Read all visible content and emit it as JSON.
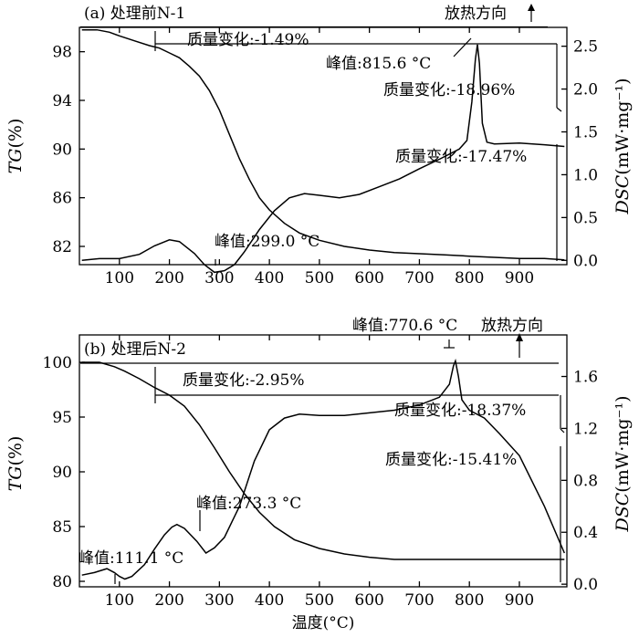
{
  "chart_data": [
    {
      "type": "line",
      "title": "(a) 处理前N-1",
      "xlim": [
        20,
        995
      ],
      "ylim_left": [
        80.5,
        100
      ],
      "ylim_right": [
        -0.05,
        2.72
      ],
      "x_ticks": [
        "100",
        "200",
        "300",
        "400",
        "500",
        "600",
        "700",
        "800",
        "900"
      ],
      "left_ticks": [
        "82",
        "86",
        "90",
        "94",
        "98"
      ],
      "right_ticks": [
        "0.0",
        "0.5",
        "1.0",
        "1.5",
        "2.0",
        "2.5"
      ],
      "left_label_it": "TG",
      "left_label_rest": "(%)",
      "right_label_it": "DSC",
      "right_label_rest": "(mW·mg⁻¹)",
      "exo_label": "放热方向",
      "series": [
        {
          "name": "TG",
          "axis": "left",
          "x": [
            25,
            55,
            80,
            100,
            130,
            160,
            180,
            200,
            220,
            240,
            260,
            280,
            300,
            320,
            340,
            360,
            380,
            400,
            430,
            460,
            500,
            550,
            600,
            650,
            700,
            750,
            800,
            850,
            900,
            950,
            990
          ],
          "y": [
            99.8,
            99.8,
            99.6,
            99.3,
            98.9,
            98.5,
            98.3,
            97.9,
            97.5,
            96.8,
            96.0,
            94.8,
            93.2,
            91.2,
            89.2,
            87.5,
            86.0,
            85.0,
            83.9,
            83.1,
            82.5,
            82.0,
            81.7,
            81.5,
            81.4,
            81.3,
            81.2,
            81.1,
            81.0,
            81.0,
            80.9
          ]
        },
        {
          "name": "DSC",
          "axis": "right",
          "x": [
            25,
            60,
            100,
            140,
            170,
            200,
            220,
            250,
            270,
            290,
            310,
            330,
            350,
            380,
            410,
            440,
            470,
            500,
            540,
            580,
            620,
            660,
            700,
            740,
            780,
            795,
            805,
            812,
            816,
            820,
            826,
            835,
            850,
            900,
            950,
            990
          ],
          "y": [
            0.0,
            0.02,
            0.02,
            0.07,
            0.17,
            0.24,
            0.22,
            0.08,
            -0.05,
            -0.14,
            -0.12,
            -0.05,
            0.1,
            0.36,
            0.58,
            0.73,
            0.78,
            0.76,
            0.73,
            0.77,
            0.86,
            0.95,
            1.07,
            1.18,
            1.3,
            1.4,
            1.85,
            2.35,
            2.52,
            2.3,
            1.6,
            1.38,
            1.36,
            1.37,
            1.35,
            1.33
          ]
        }
      ],
      "annotations": {
        "mass1": "质量变化:-1.49%",
        "peak_high": "峰值:815.6 °C",
        "mass2": "质量变化:-18.96%",
        "mass3": "质量变化:-17.47%",
        "peak_low": "峰值:299.0 °C"
      }
    },
    {
      "type": "line",
      "title": "(b) 处理后N-2",
      "xlim": [
        20,
        995
      ],
      "ylim_left": [
        79.5,
        102.5
      ],
      "ylim_right": [
        -0.02,
        1.92
      ],
      "x_ticks": [
        "100",
        "200",
        "300",
        "400",
        "500",
        "600",
        "700",
        "800",
        "900"
      ],
      "left_ticks": [
        "80",
        "85",
        "90",
        "95",
        "100"
      ],
      "right_ticks": [
        "0.0",
        "0.4",
        "0.8",
        "1.2",
        "1.6"
      ],
      "left_label_it": "TG",
      "left_label_rest": "(%)",
      "right_label_it": "DSC",
      "right_label_rest": "(mW·mg⁻¹)",
      "exo_label": "放热方向",
      "xlabel": "温度(°C)",
      "series": [
        {
          "name": "TG",
          "axis": "left",
          "x": [
            25,
            60,
            90,
            110,
            140,
            170,
            200,
            230,
            260,
            290,
            320,
            350,
            380,
            410,
            450,
            500,
            550,
            600,
            650,
            700,
            750,
            800,
            850,
            900,
            950,
            990
          ],
          "y": [
            100.0,
            100.0,
            99.6,
            99.2,
            98.5,
            97.7,
            97.0,
            96.0,
            94.3,
            92.2,
            90.0,
            88.0,
            86.3,
            85.0,
            83.8,
            83.0,
            82.5,
            82.2,
            82.0,
            82.0,
            82.0,
            82.0,
            82.0,
            82.0,
            82.0,
            82.0
          ]
        },
        {
          "name": "DSC",
          "axis": "right",
          "x": [
            25,
            50,
            75,
            90,
            100,
            111,
            125,
            150,
            170,
            190,
            205,
            215,
            230,
            255,
            273,
            290,
            310,
            340,
            370,
            400,
            430,
            460,
            500,
            550,
            600,
            650,
            700,
            740,
            760,
            768,
            772,
            778,
            785,
            800,
            830,
            860,
            900,
            950,
            990
          ],
          "y": [
            0.07,
            0.09,
            0.12,
            0.09,
            0.06,
            0.04,
            0.06,
            0.15,
            0.27,
            0.38,
            0.44,
            0.46,
            0.43,
            0.33,
            0.24,
            0.28,
            0.36,
            0.6,
            0.95,
            1.19,
            1.28,
            1.31,
            1.3,
            1.3,
            1.32,
            1.34,
            1.38,
            1.44,
            1.54,
            1.68,
            1.72,
            1.6,
            1.42,
            1.34,
            1.28,
            1.16,
            0.99,
            0.6,
            0.24
          ]
        }
      ],
      "annotations": {
        "mass1": "质量变化:-2.95%",
        "peak_high": "峰值:770.6 °C",
        "mass2": "质量变化:-18.37%",
        "mass3": "质量变化:-15.41%",
        "peak_mid": "峰值:273.3 °C",
        "peak_low": "峰值:111.1 °C"
      }
    }
  ]
}
